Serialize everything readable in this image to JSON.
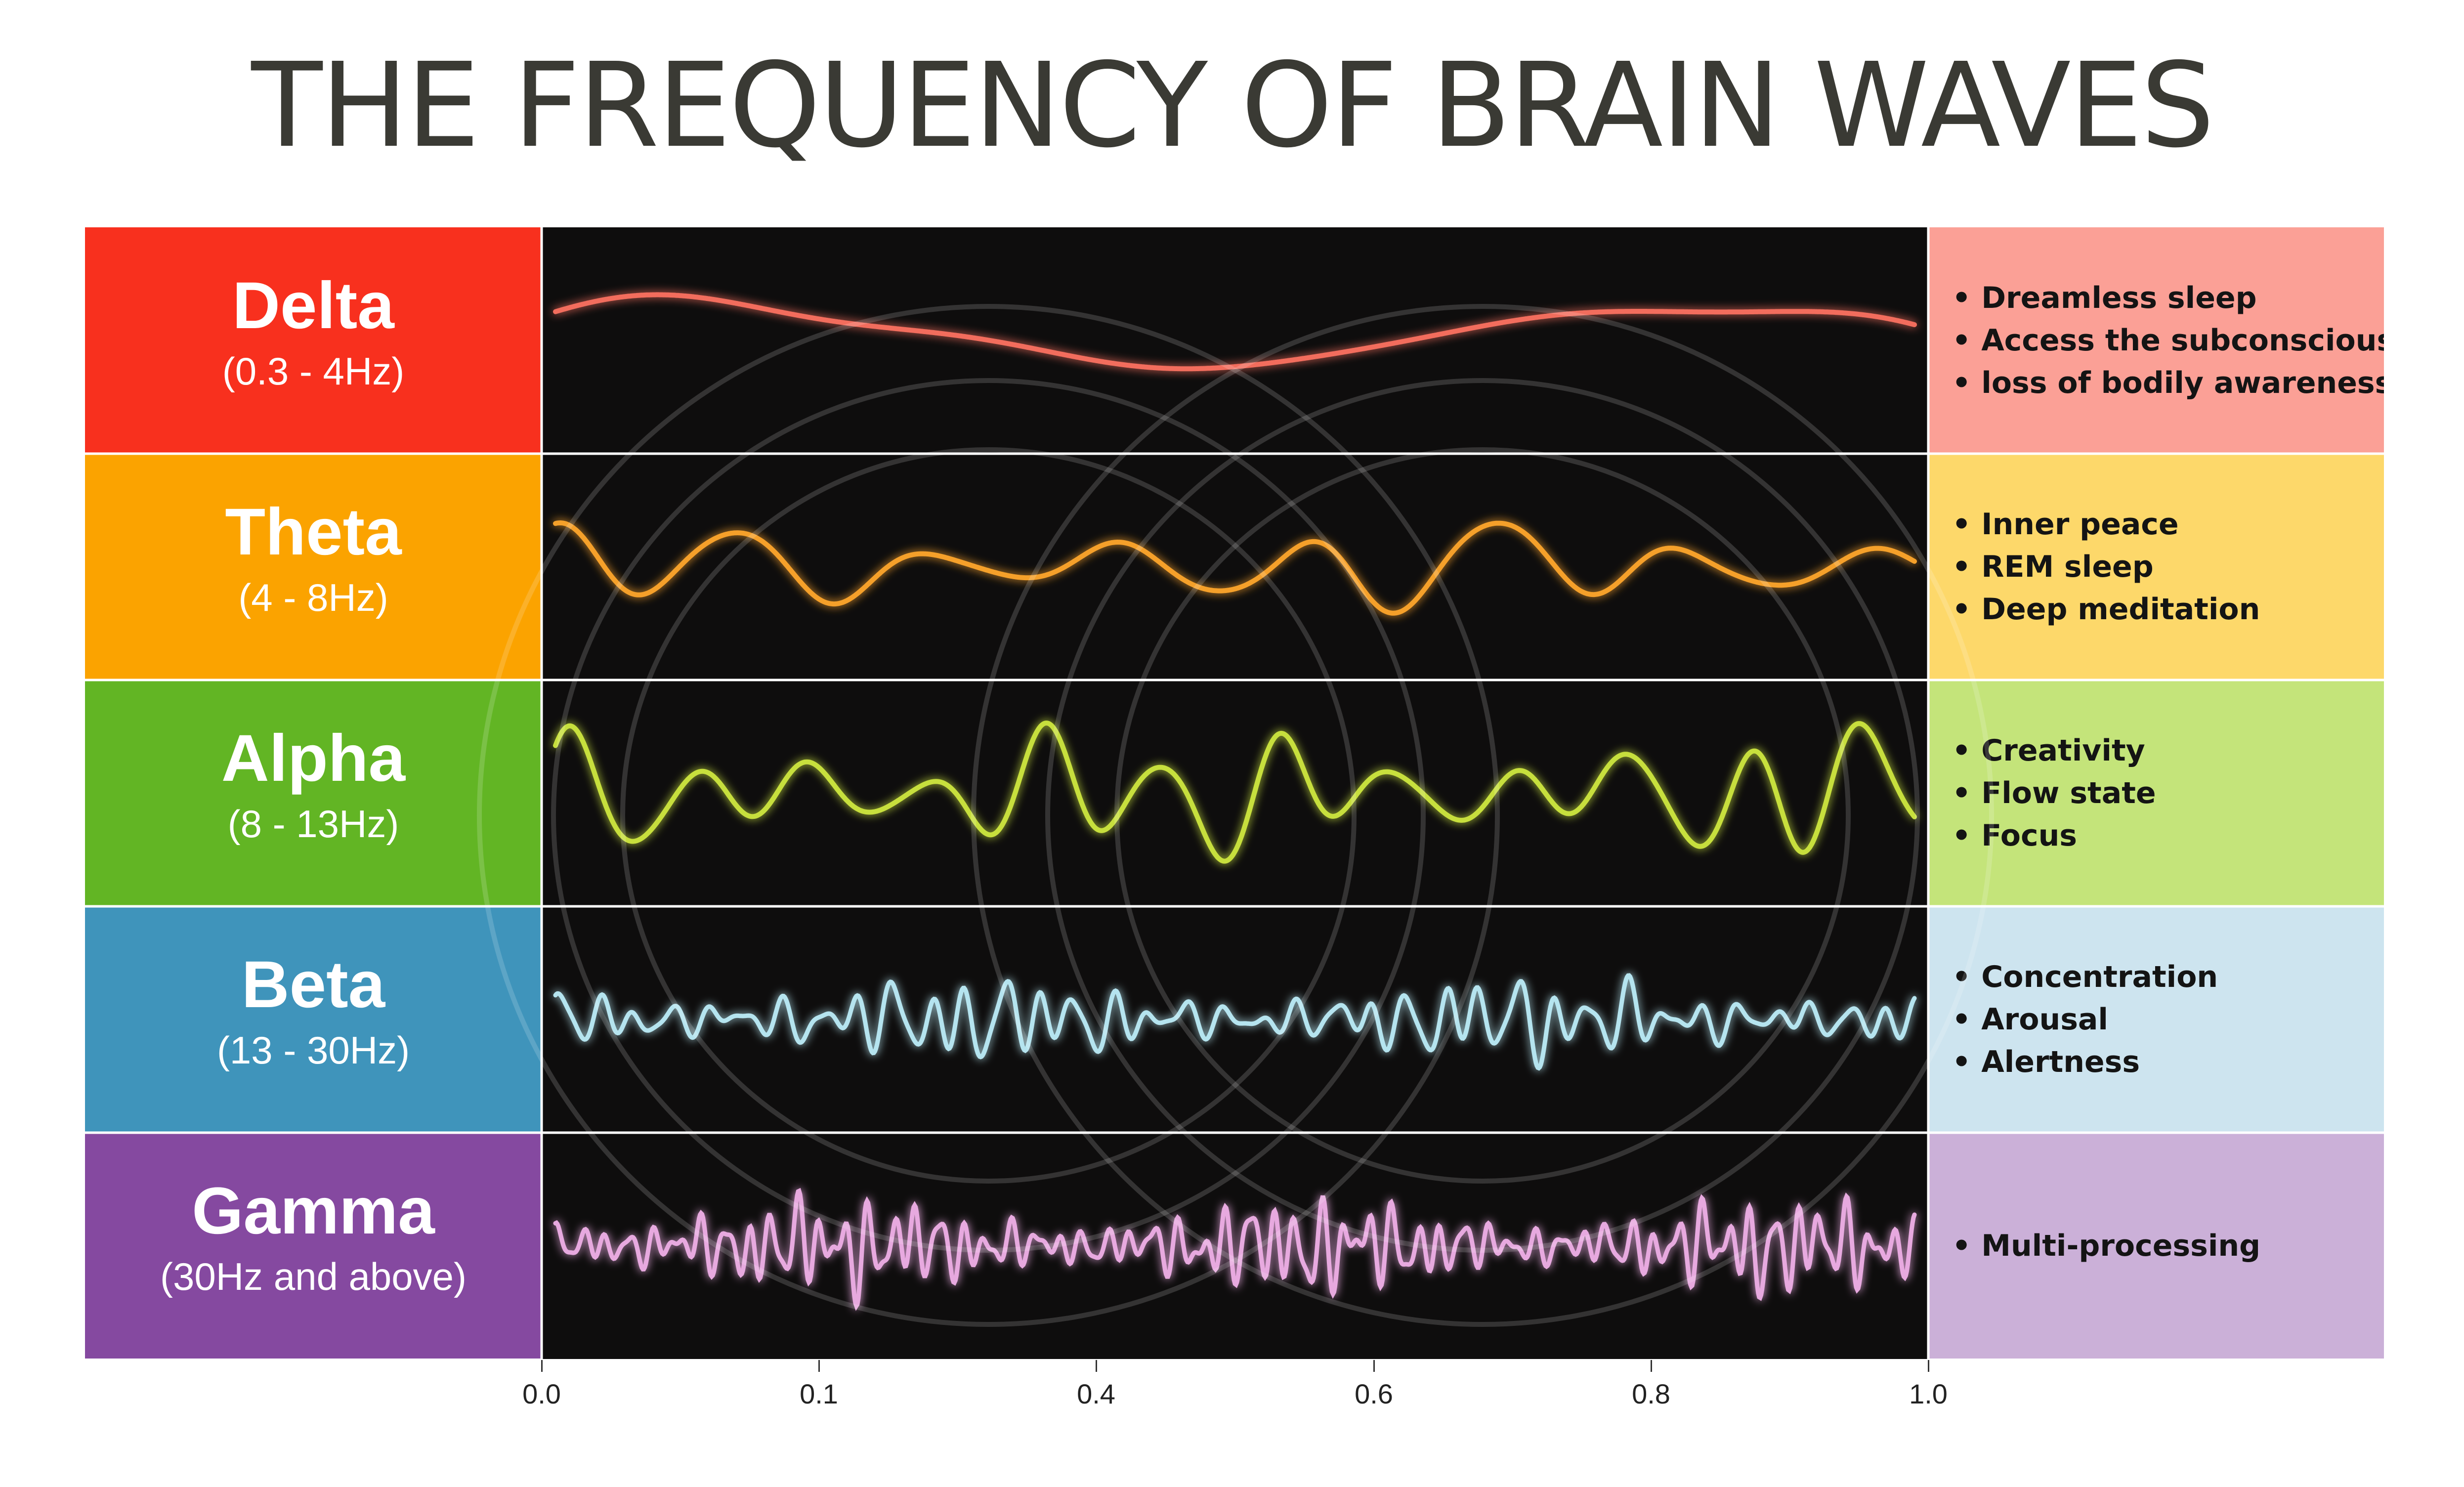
{
  "title": "THE FREQUENCY OF BRAIN WAVES",
  "bands": [
    {
      "name": "Delta",
      "range": "(0.3 - 4Hz)",
      "color": "#f8301e",
      "descColor": "#fba096",
      "waveColor": "#f26d5d",
      "features": [
        "Dreamless sleep",
        "Access the subconscious",
        "loss of bodily awareness"
      ]
    },
    {
      "name": "Theta",
      "range": "(4 - 8Hz)",
      "color": "#fba300",
      "descColor": "#fdd86a",
      "waveColor": "#f5a02a",
      "features": [
        "Inner peace",
        "REM sleep",
        "Deep meditation"
      ]
    },
    {
      "name": "Alpha",
      "range": "(8 - 13Hz)",
      "color": "#62b524",
      "descColor": "#c4e47a",
      "waveColor": "#c7df3c",
      "features": [
        "Creativity",
        "Flow state",
        "Focus"
      ]
    },
    {
      "name": "Beta",
      "range": "(13 - 30Hz)",
      "color": "#3f94bb",
      "descColor": "#cde4ef",
      "waveColor": "#b5e4ef",
      "features": [
        "Concentration",
        "Arousal",
        "Alertness"
      ]
    },
    {
      "name": "Gamma",
      "range": "(30Hz and above)",
      "color": "#8549a0",
      "descColor": "#cbb0d8",
      "waveColor": "#e7a9df",
      "features": [
        "Multi-processing"
      ]
    }
  ],
  "axis": {
    "ticks": [
      "0.0",
      "0.1",
      "0.4",
      "0.6",
      "0.8",
      "1.0"
    ]
  }
}
